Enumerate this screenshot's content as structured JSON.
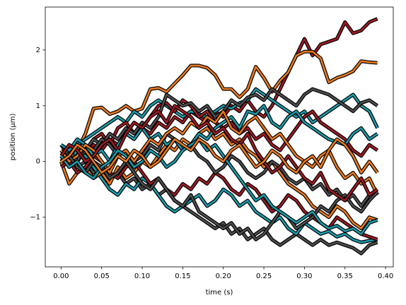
{
  "chart_data": {
    "type": "line",
    "xlabel": "time (s)",
    "ylabel": "position (μm)",
    "x": [
      0,
      0.01,
      0.02,
      0.03,
      0.04,
      0.05,
      0.06,
      0.07,
      0.08,
      0.09,
      0.1,
      0.11,
      0.12,
      0.13,
      0.14,
      0.15,
      0.16,
      0.17,
      0.18,
      0.19,
      0.2,
      0.21,
      0.22,
      0.23,
      0.24,
      0.25,
      0.26,
      0.27,
      0.28,
      0.29,
      0.3,
      0.31,
      0.32,
      0.33,
      0.34,
      0.35,
      0.36,
      0.37,
      0.38,
      0.39
    ],
    "xlim": [
      -0.0195,
      0.4095
    ],
    "ylim": [
      -1.89,
      2.77
    ],
    "xticks": [
      {
        "value": 0,
        "label": "0.00"
      },
      {
        "value": 0.05,
        "label": "0.05"
      },
      {
        "value": 0.1,
        "label": "0.10"
      },
      {
        "value": 0.15,
        "label": "0.15"
      },
      {
        "value": 0.2,
        "label": "0.20"
      },
      {
        "value": 0.25,
        "label": "0.25"
      },
      {
        "value": 0.3,
        "label": "0.30"
      },
      {
        "value": 0.35,
        "label": "0.35"
      },
      {
        "value": 0.4,
        "label": "0.40"
      }
    ],
    "yticks": [
      {
        "value": -1,
        "label": "−1"
      },
      0,
      1,
      2
    ],
    "series": [
      {
        "color": "#9b1b24",
        "values": [
          0,
          0.1,
          0.2,
          0.1,
          0.3,
          0.2,
          0.4,
          0.3,
          0.5,
          0.4,
          0.6,
          0.5,
          0.7,
          0.6,
          0.8,
          0.7,
          0.9,
          0.8,
          0.7,
          0.9,
          0.8,
          1.0,
          0.9,
          1.1,
          0.9,
          0.8,
          1.0,
          1.3,
          1.6,
          1.9,
          2.2,
          1.9,
          2.1,
          2.15,
          2.2,
          2.5,
          2.3,
          2.35,
          2.5,
          2.56
        ]
      },
      {
        "color": "#e8791e",
        "values": [
          0.1,
          -0.1,
          0.2,
          0.5,
          0.95,
          0.97,
          0.85,
          0.9,
          1.0,
          0.9,
          0.95,
          1.3,
          1.32,
          1.25,
          1.4,
          1.55,
          1.72,
          1.72,
          1.68,
          1.55,
          1.3,
          1.3,
          1.15,
          1.3,
          1.7,
          1.5,
          1.25,
          1.45,
          1.6,
          1.9,
          1.97,
          1.97,
          1.85,
          1.42,
          1.5,
          1.55,
          1.62,
          1.8,
          1.78,
          1.77
        ]
      },
      {
        "color": "#4d4d4d",
        "values": [
          0.2,
          0.1,
          -0.1,
          0.0,
          -0.2,
          -0.1,
          -0.3,
          -0.2,
          -0.4,
          -0.3,
          -0.5,
          -0.4,
          -0.6,
          -0.5,
          -0.7,
          -0.8,
          -0.9,
          -1.0,
          -1.1,
          -1.2,
          -1.1,
          -1.3,
          -1.2,
          -1.4,
          -1.3,
          -1.2,
          -1.4,
          -1.5,
          -1.4,
          -1.3,
          -1.4,
          -1.5,
          -1.4,
          -1.5,
          -1.45,
          -1.5,
          -1.55,
          -1.65,
          -1.5,
          -1.45
        ]
      },
      {
        "color": "#1a9aaa",
        "values": [
          0.1,
          0.0,
          0.2,
          0.1,
          -0.1,
          -0.3,
          -0.5,
          -0.6,
          -0.4,
          -0.5,
          -0.3,
          -0.4,
          -0.6,
          -0.8,
          -0.9,
          -0.8,
          -0.7,
          -0.6,
          -0.8,
          -0.7,
          -0.5,
          -0.6,
          -0.8,
          -0.7,
          -0.9,
          -1.0,
          -1.1,
          -1.0,
          -1.2,
          -1.3,
          -1.1,
          -1.2,
          -1.3,
          -1.25,
          -1.35,
          -1.3,
          -1.4,
          -1.45,
          -1.42,
          -1.4
        ]
      },
      {
        "color": "#1a9aaa",
        "values": [
          0.2,
          0.1,
          0.3,
          0.4,
          0.5,
          0.6,
          0.7,
          0.8,
          0.7,
          0.9,
          0.8,
          1.0,
          1.1,
          1.0,
          0.9,
          0.8,
          0.9,
          0.85,
          0.8,
          0.9,
          1.0,
          0.95,
          1.05,
          1.1,
          1.3,
          1.2,
          1.1,
          1.0,
          0.9,
          0.8,
          0.9,
          0.7,
          0.8,
          0.9,
          1.0,
          1.1,
          1.2,
          1.0,
          0.9,
          0.6
        ]
      },
      {
        "color": "#9b1b24",
        "values": [
          0.0,
          0.2,
          0.3,
          0.2,
          0.4,
          0.5,
          0.3,
          0.6,
          0.7,
          0.5,
          0.6,
          0.8,
          1.0,
          1.05,
          0.9,
          1.1,
          1.0,
          0.8,
          0.9,
          0.7,
          0.6,
          0.7,
          0.5,
          0.6,
          0.4,
          0.5,
          0.3,
          0.2,
          0.4,
          0.6,
          0.8,
          0.9,
          0.7,
          0.6,
          0.5,
          0.4,
          0.2,
          0.1,
          0.3,
          0.2
        ]
      },
      {
        "color": "#4d4d4d",
        "values": [
          0.3,
          0.1,
          0.0,
          0.2,
          0.4,
          0.3,
          0.5,
          0.4,
          0.6,
          0.5,
          0.7,
          0.6,
          0.8,
          1.2,
          1.1,
          1.0,
          1.05,
          0.9,
          1.0,
          0.8,
          0.9,
          1.1,
          1.0,
          1.15,
          1.2,
          1.1,
          1.3,
          1.2,
          1.1,
          1.0,
          1.2,
          1.3,
          1.25,
          1.2,
          1.1,
          1.0,
          0.9,
          1.05,
          1.1,
          1.0
        ]
      },
      {
        "color": "#e8791e",
        "values": [
          0.0,
          -0.4,
          -0.2,
          -0.1,
          -0.3,
          -0.2,
          -0.4,
          -0.1,
          -0.3,
          -0.2,
          0.0,
          -0.1,
          0.1,
          0.3,
          0.2,
          0.4,
          0.3,
          0.5,
          0.6,
          0.4,
          0.5,
          0.3,
          0.4,
          0.2,
          0.1,
          -0.1,
          0.0,
          -0.2,
          -0.4,
          -0.5,
          -0.6,
          -0.8,
          -0.9,
          -1.0,
          -0.8,
          -0.9,
          -1.1,
          -1.2,
          -1.0,
          -1.05
        ]
      },
      {
        "color": "#9b1b24",
        "values": [
          -0.1,
          0.0,
          -0.2,
          -0.1,
          0.1,
          0.0,
          -0.2,
          -0.3,
          -0.1,
          0.0,
          -0.2,
          -0.4,
          -0.3,
          -0.5,
          -0.6,
          -0.4,
          -0.5,
          -0.3,
          -0.4,
          -0.2,
          -0.3,
          -0.5,
          -0.6,
          -0.4,
          -0.5,
          -0.7,
          -0.9,
          -0.8,
          -0.6,
          -0.7,
          -0.9,
          -1.0,
          -1.1,
          -1.2,
          -1.0,
          -1.1,
          -1.2,
          -1.3,
          -1.35,
          -1.4
        ]
      },
      {
        "color": "#4d4d4d",
        "values": [
          0.1,
          0.2,
          0.0,
          0.3,
          0.2,
          0.4,
          0.3,
          0.1,
          0.2,
          0.0,
          0.1,
          0.3,
          0.2,
          0.5,
          0.4,
          0.2,
          0.3,
          0.1,
          0.0,
          -0.2,
          -0.1,
          0.1,
          0.0,
          -0.2,
          -0.3,
          -0.2,
          0.0,
          -0.1,
          -0.3,
          -0.4,
          -0.3,
          -0.5,
          -0.4,
          -0.6,
          -0.5,
          -0.7,
          -0.6,
          -0.8,
          -0.6,
          -0.5
        ]
      },
      {
        "color": "#1a9aaa",
        "values": [
          0.3,
          0.2,
          0.4,
          0.3,
          0.1,
          0.2,
          0.0,
          0.3,
          0.5,
          0.4,
          0.6,
          0.4,
          0.5,
          0.3,
          0.4,
          0.2,
          0.3,
          0.5,
          0.4,
          0.6,
          0.7,
          0.8,
          0.6,
          0.9,
          0.85,
          1.0,
          0.7,
          0.6,
          0.8,
          0.9,
          0.7,
          0.6,
          0.5,
          0.4,
          0.35,
          0.3,
          0.5,
          0.6,
          0.4,
          0.5
        ]
      },
      {
        "color": "#e8791e",
        "values": [
          0.2,
          0.0,
          0.1,
          0.3,
          0.2,
          0.0,
          -0.2,
          0.1,
          0.2,
          0.0,
          0.2,
          0.4,
          0.3,
          0.5,
          0.6,
          0.5,
          0.7,
          0.6,
          0.8,
          0.7,
          0.9,
          0.6,
          0.5,
          0.7,
          0.8,
          0.6,
          0.4,
          0.5,
          0.3,
          0.1,
          0.0,
          -0.1,
          0.1,
          0.2,
          -0.1,
          -0.3,
          -0.2,
          -0.4,
          -0.3,
          -0.6
        ]
      },
      {
        "color": "#4d4d4d",
        "values": [
          0.0,
          0.1,
          -0.1,
          -0.2,
          0.0,
          -0.1,
          -0.3,
          -0.2,
          0.0,
          -0.2,
          -0.4,
          -0.5,
          -0.3,
          -0.5,
          -0.7,
          -0.8,
          -0.6,
          -0.9,
          -1.0,
          -1.1,
          -1.2,
          -1.1,
          -1.3,
          -1.2,
          -1.4,
          -1.3,
          -1.1,
          -0.9,
          -1.0,
          -1.2,
          -1.1,
          -1.0,
          -0.8,
          -0.9,
          -0.7,
          -0.6,
          -0.8,
          -0.9,
          -0.7,
          -0.55
        ]
      },
      {
        "color": "#9b1b24",
        "values": [
          0.1,
          0.3,
          0.2,
          0.0,
          0.1,
          0.3,
          0.4,
          0.2,
          0.5,
          0.7,
          0.6,
          0.8,
          0.9,
          0.7,
          1.0,
          0.9,
          0.8,
          0.6,
          0.7,
          0.5,
          0.6,
          0.4,
          0.3,
          0.5,
          0.2,
          0.0,
          -0.2,
          -0.1,
          0.1,
          -0.1,
          -0.3,
          -0.4,
          -0.2,
          -0.5,
          -0.6,
          -0.7,
          -0.5,
          -0.3,
          -0.6,
          -0.5
        ]
      },
      {
        "color": "#1a9aaa",
        "values": [
          0.1,
          -0.1,
          0.0,
          -0.2,
          -0.3,
          -0.1,
          0.0,
          0.2,
          0.1,
          -0.1,
          0.0,
          0.2,
          0.1,
          -0.1,
          0.0,
          0.2,
          0.3,
          0.4,
          0.2,
          0.3,
          0.1,
          -0.1,
          -0.3,
          -0.5,
          -0.7,
          -0.6,
          -0.8,
          -0.9,
          -1.0,
          -1.1,
          -1.0,
          -0.9,
          -1.1,
          -1.2,
          -1.15,
          -1.25,
          -1.2,
          -1.3,
          -1.1,
          -1.05
        ]
      },
      {
        "color": "#e8791e",
        "values": [
          0.0,
          0.1,
          0.3,
          0.2,
          0.0,
          -0.2,
          -0.1,
          0.1,
          0.0,
          0.2,
          0.1,
          -0.1,
          0.0,
          0.2,
          0.4,
          0.3,
          0.2,
          0.4,
          0.3,
          0.1,
          0.0,
          0.2,
          0.3,
          0.1,
          -0.1,
          0.0,
          0.2,
          0.1,
          -0.1,
          -0.2,
          0.0,
          0.1,
          -0.1,
          0.2,
          0.4,
          0.3,
          0.1,
          -0.2,
          0.0,
          -0.2
        ]
      }
    ]
  }
}
